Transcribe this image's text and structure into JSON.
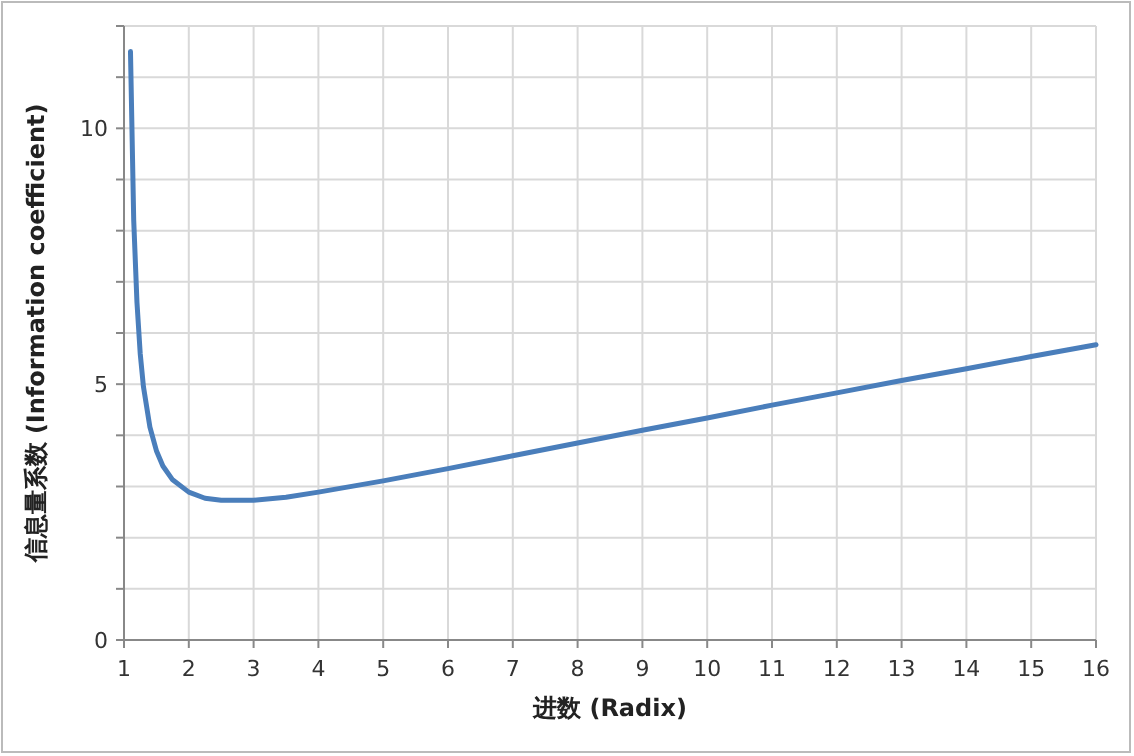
{
  "chart_data": {
    "type": "line",
    "xlabel": "进数 (Radix)",
    "ylabel": "信息量系数 (Information coefficient)",
    "xlim": [
      1,
      16
    ],
    "xticks": [
      1,
      2,
      3,
      4,
      5,
      6,
      7,
      8,
      9,
      10,
      11,
      12,
      13,
      14,
      15,
      16
    ],
    "ylim": [
      0,
      12
    ],
    "yticks": [
      0,
      {
        "value": 1,
        "label": null
      },
      {
        "value": 2,
        "label": null
      },
      {
        "value": 3,
        "label": null
      },
      {
        "value": 4,
        "label": null
      },
      5,
      {
        "value": 6,
        "label": null
      },
      {
        "value": 7,
        "label": null
      },
      {
        "value": 8,
        "label": null
      },
      {
        "value": 9,
        "label": null
      },
      10,
      {
        "value": 11,
        "label": null
      },
      {
        "value": 12,
        "label": null
      }
    ],
    "grid": true,
    "marker": "none",
    "line_style": "solid",
    "series": [
      {
        "color": "#4a7ebb",
        "x": [
          1.1,
          1.15,
          1.2,
          1.25,
          1.3,
          1.4,
          1.5,
          1.6,
          1.75,
          2,
          2.25,
          2.5,
          3,
          3.5,
          4,
          5,
          6,
          7,
          8,
          9,
          10,
          11,
          12,
          13,
          14,
          15,
          16
        ],
        "values": [
          11.5,
          8.2,
          6.6,
          5.6,
          4.95,
          4.16,
          3.7,
          3.4,
          3.13,
          2.89,
          2.77,
          2.73,
          2.73,
          2.79,
          2.89,
          3.11,
          3.35,
          3.6,
          3.85,
          4.1,
          4.34,
          4.59,
          4.83,
          5.07,
          5.3,
          5.54,
          5.77
        ]
      }
    ]
  }
}
